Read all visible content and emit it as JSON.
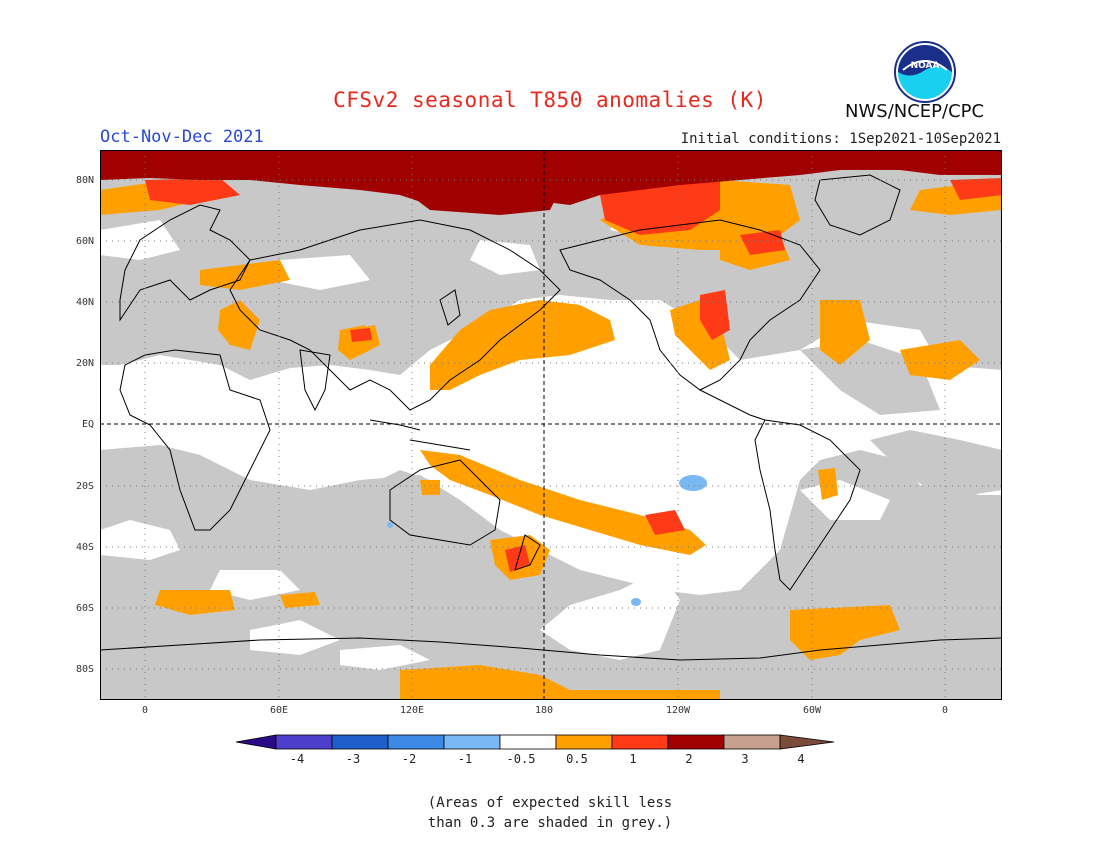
{
  "header": {
    "title": "CFSv2 seasonal T850 anomalies (K)",
    "season": "Oct-Nov-Dec 2021",
    "initial_conditions": "Initial conditions: 1Sep2021-10Sep2021",
    "agency": "NWS/NCEP/CPC",
    "logo_text": "NOAA"
  },
  "map": {
    "lat_labels": [
      "80N",
      "60N",
      "40N",
      "20N",
      "EQ",
      "20S",
      "40S",
      "60S",
      "80S"
    ],
    "lon_labels": [
      "0",
      "60E",
      "120E",
      "180",
      "120W",
      "60W",
      "0"
    ],
    "colors": {
      "land_outline": "#000000",
      "grey_low_skill": "#c8c8c8",
      "ocean_white": "#ffffff"
    }
  },
  "legend": {
    "colorbar": {
      "colors": [
        "#2a0a86",
        "#4d3fcb",
        "#1f5fcc",
        "#3d8ae6",
        "#79b8f2",
        "#ffffff",
        "#ffa000",
        "#ff3a16",
        "#a00000",
        "#c8a090",
        "#7a4a3a"
      ],
      "tick_labels": [
        "-4",
        "-3",
        "-2",
        "-1",
        "-0.5",
        "0.5",
        "1",
        "2",
        "3",
        "4"
      ]
    },
    "note_line1": "(Areas of expected skill less",
    "note_line2": "than 0.3 are shaded in grey.)"
  }
}
